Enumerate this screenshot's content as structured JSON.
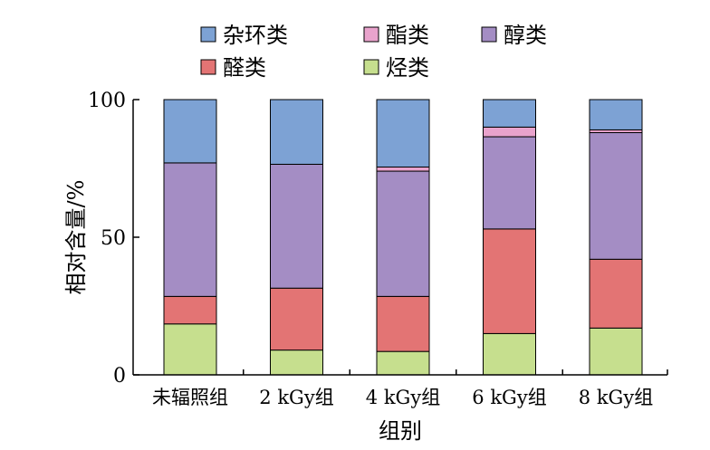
{
  "chart_data": {
    "type": "bar",
    "stacked": true,
    "categories": [
      "未辐照组",
      "2 kGy组",
      "4 kGy组",
      "6 kGy组",
      "8 kGy组"
    ],
    "series": [
      {
        "name": "烃类",
        "color": "#c6df8e",
        "values": [
          18.5,
          9.0,
          8.5,
          15.0,
          17.0
        ]
      },
      {
        "name": "醛类",
        "color": "#e37474",
        "values": [
          10.0,
          22.5,
          20.0,
          38.0,
          25.0
        ]
      },
      {
        "name": "醇类",
        "color": "#a48dc4",
        "values": [
          48.5,
          45.0,
          45.5,
          33.5,
          46.0
        ]
      },
      {
        "name": "酯类",
        "color": "#e9a3cc",
        "values": [
          0.0,
          0.0,
          1.5,
          3.5,
          1.0
        ]
      },
      {
        "name": "杂环类",
        "color": "#7da2d4",
        "values": [
          23.0,
          23.5,
          24.5,
          10.0,
          11.0
        ]
      }
    ],
    "legend_order": [
      "杂环类",
      "酯类",
      "醇类",
      "醛类",
      "烃类"
    ],
    "xlabel": "组别",
    "ylabel": "相对含量/%",
    "yticks": [
      0,
      50,
      100
    ],
    "ylim": [
      0,
      100
    ],
    "grid": false,
    "legend_position": "top"
  }
}
